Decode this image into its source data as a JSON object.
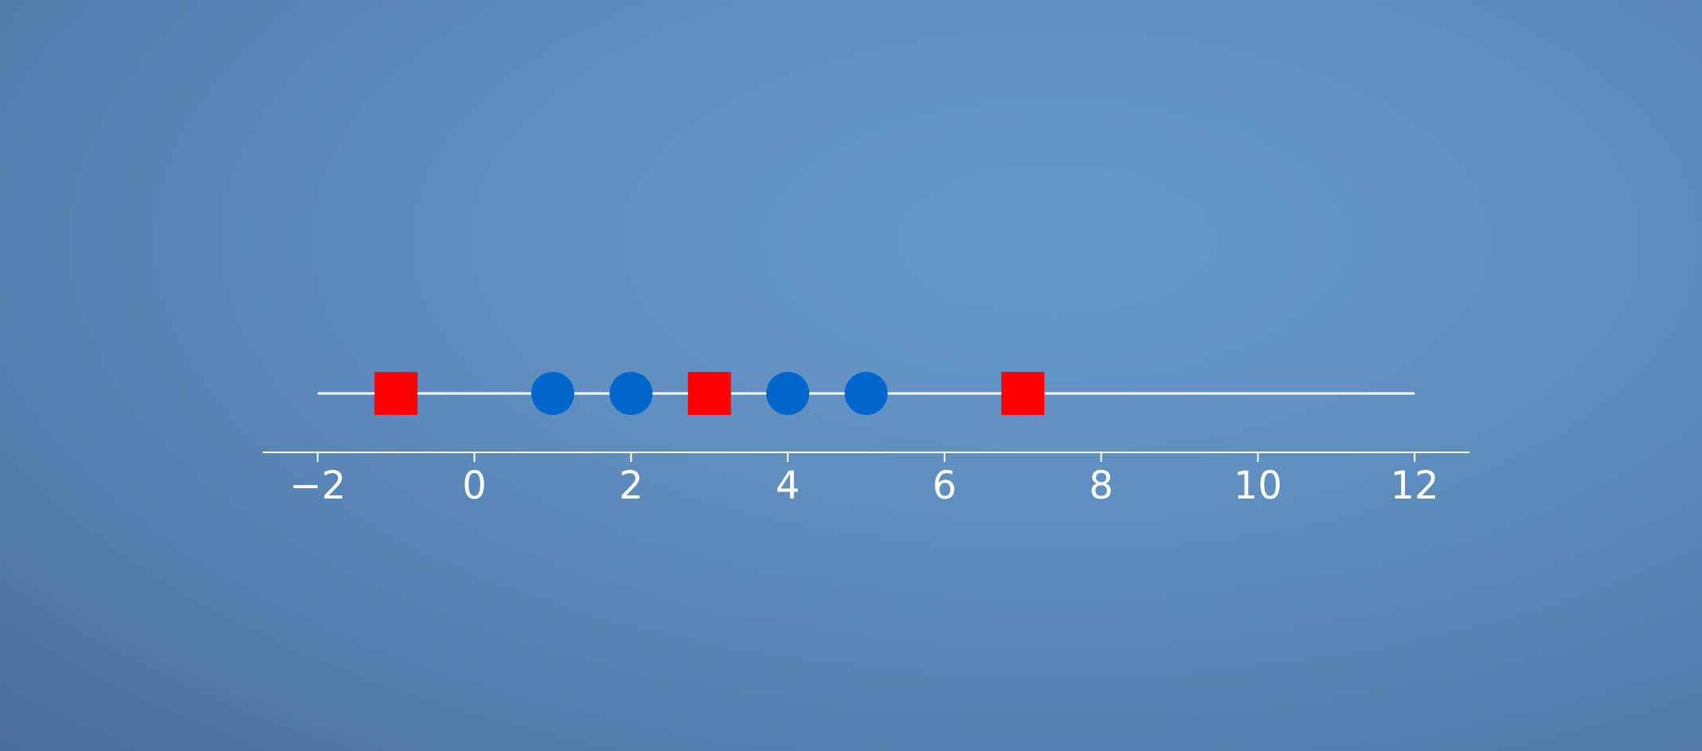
{
  "chart_data": {
    "type": "scatter",
    "title": "",
    "xlabel": "",
    "ylabel": "",
    "xlim": [
      -2.7,
      12.7
    ],
    "x_ticks": [
      -2,
      0,
      2,
      4,
      6,
      8,
      10,
      12
    ],
    "x_tick_labels": [
      "−2",
      "0",
      "2",
      "4",
      "6",
      "8",
      "10",
      "12"
    ],
    "grid": false,
    "baseline_range": [
      -2,
      12
    ],
    "series": [
      {
        "marker": "square",
        "color": "#ff0000",
        "x": [
          -1,
          3,
          7
        ]
      },
      {
        "marker": "circle",
        "color": "#0066cc",
        "x": [
          1,
          2,
          4,
          5
        ]
      }
    ],
    "axis_color": "#ffffff"
  }
}
